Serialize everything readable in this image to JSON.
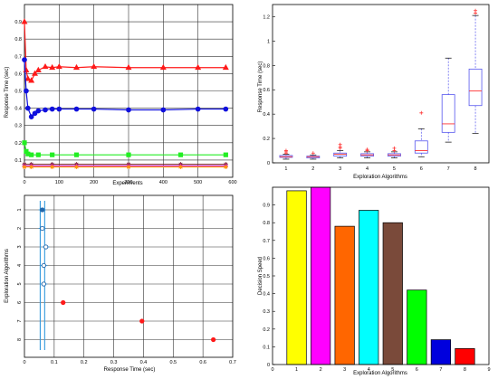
{
  "colors": {
    "red": "#ff1a1a",
    "blue": "#1010dd",
    "green": "#22ee22",
    "maroon": "#7a1a2a",
    "magenta": "#dd22dd",
    "orange": "#ff9900",
    "grid": "#333333",
    "axis": "#000000",
    "box": "#5555ee",
    "median": "#ff3333",
    "ci_line": "#3399dd",
    "ci_point": "#2266aa",
    "bar_fill": [
      "#ffff00",
      "#ff00ff",
      "#ff6600",
      "#00ffff",
      "#7a4a3a",
      "#00ff00",
      "#0000dd",
      "#ff0000"
    ]
  },
  "chart_data": [
    {
      "type": "line",
      "xlabel": "Experiments",
      "ylabel": "Response Time (sec)",
      "xlim": [
        0,
        600
      ],
      "ylim": [
        0,
        1
      ],
      "xticks": [
        0,
        100,
        200,
        300,
        400,
        500,
        600
      ],
      "yticks": [
        0.1,
        0.2,
        0.3,
        0.4,
        0.5,
        0.6,
        0.7,
        0.8,
        0.9
      ],
      "grid": true,
      "series": [
        {
          "color_key": "red",
          "marker": "triangle",
          "x": [
            0,
            5,
            10,
            20,
            30,
            40,
            60,
            80,
            100,
            150,
            200,
            300,
            400,
            500,
            580
          ],
          "y": [
            0.9,
            0.62,
            0.57,
            0.56,
            0.6,
            0.62,
            0.64,
            0.635,
            0.64,
            0.635,
            0.64,
            0.635,
            0.635,
            0.635,
            0.635
          ]
        },
        {
          "color_key": "blue",
          "marker": "circle",
          "x": [
            0,
            5,
            10,
            20,
            30,
            40,
            60,
            80,
            100,
            150,
            200,
            300,
            400,
            500,
            580
          ],
          "y": [
            0.68,
            0.5,
            0.4,
            0.35,
            0.37,
            0.385,
            0.39,
            0.395,
            0.395,
            0.395,
            0.395,
            0.39,
            0.39,
            0.395,
            0.395
          ]
        },
        {
          "color_key": "green",
          "marker": "square",
          "x": [
            0,
            5,
            10,
            20,
            40,
            80,
            150,
            300,
            450,
            580
          ],
          "y": [
            0.2,
            0.15,
            0.135,
            0.13,
            0.13,
            0.13,
            0.13,
            0.13,
            0.13,
            0.13
          ]
        },
        {
          "color_key": "maroon",
          "marker": "star",
          "x": [
            0,
            20,
            80,
            150,
            300,
            450,
            580
          ],
          "y": [
            0.075,
            0.075,
            0.075,
            0.075,
            0.075,
            0.075,
            0.075
          ]
        },
        {
          "color_key": "magenta",
          "marker": "star",
          "x": [
            0,
            20,
            80,
            150,
            300,
            450,
            580
          ],
          "y": [
            0.065,
            0.065,
            0.065,
            0.065,
            0.065,
            0.065,
            0.065
          ]
        },
        {
          "color_key": "orange",
          "marker": "star",
          "x": [
            0,
            20,
            80,
            150,
            300,
            450,
            580
          ],
          "y": [
            0.06,
            0.06,
            0.06,
            0.06,
            0.06,
            0.06,
            0.06
          ]
        }
      ]
    },
    {
      "type": "box",
      "xlabel": "Exploration Algorithms",
      "ylabel": "Response Time (sec)",
      "categories": [
        "1",
        "2",
        "3",
        "4",
        "5",
        "6",
        "7",
        "8"
      ],
      "ylim": [
        0,
        1.3
      ],
      "yticks": [
        0,
        0.2,
        0.4,
        0.6,
        0.8,
        1,
        1.2
      ],
      "boxes": [
        {
          "lw": 0.03,
          "q1": 0.045,
          "med": 0.05,
          "q3": 0.06,
          "uw": 0.07,
          "outliers": [
            0.09,
            0.1,
            0.08
          ]
        },
        {
          "lw": 0.03,
          "q1": 0.04,
          "med": 0.05,
          "q3": 0.055,
          "uw": 0.065,
          "outliers": [
            0.08
          ]
        },
        {
          "lw": 0.04,
          "q1": 0.055,
          "med": 0.07,
          "q3": 0.08,
          "uw": 0.1,
          "outliers": [
            0.12,
            0.13,
            0.15
          ]
        },
        {
          "lw": 0.04,
          "q1": 0.055,
          "med": 0.065,
          "q3": 0.075,
          "uw": 0.09,
          "outliers": [
            0.1,
            0.11
          ]
        },
        {
          "lw": 0.04,
          "q1": 0.055,
          "med": 0.065,
          "q3": 0.075,
          "uw": 0.09,
          "outliers": [
            0.1,
            0.12
          ]
        },
        {
          "lw": 0.05,
          "q1": 0.08,
          "med": 0.1,
          "q3": 0.18,
          "uw": 0.28,
          "outliers": [
            0.41
          ]
        },
        {
          "lw": 0.17,
          "q1": 0.25,
          "med": 0.32,
          "q3": 0.56,
          "uw": 0.86,
          "outliers": []
        },
        {
          "lw": 0.24,
          "q1": 0.47,
          "med": 0.59,
          "q3": 0.77,
          "uw": 1.21,
          "outliers": [
            1.25,
            1.23
          ]
        }
      ]
    },
    {
      "type": "scatter",
      "xlabel": "Response Time (sec)",
      "ylabel": "Exploration Algorithms",
      "categories": [
        "1",
        "2",
        "3",
        "4",
        "5",
        "6",
        "7",
        "8"
      ],
      "xlim": [
        0,
        0.7
      ],
      "xticks": [
        0,
        0.1,
        0.2,
        0.3,
        0.4,
        0.5,
        0.6,
        0.7
      ],
      "vertical_lines": [
        0.053,
        0.068
      ],
      "points": [
        {
          "x": 0.06,
          "y": 1,
          "filled": true
        },
        {
          "x": 0.06,
          "y": 2,
          "filled": false
        },
        {
          "x": 0.072,
          "y": 3,
          "filled": false
        },
        {
          "x": 0.065,
          "y": 4,
          "filled": false
        },
        {
          "x": 0.065,
          "y": 5,
          "filled": false
        },
        {
          "x": 0.13,
          "y": 6,
          "filled": true
        },
        {
          "x": 0.395,
          "y": 7,
          "filled": true
        },
        {
          "x": 0.635,
          "y": 8,
          "filled": true
        }
      ]
    },
    {
      "type": "bar",
      "xlabel": "Exploration Algorithms",
      "ylabel": "Decision Speed",
      "categories": [
        "1",
        "2",
        "3",
        "4",
        "5",
        "6",
        "7",
        "8"
      ],
      "xticks": [
        0,
        1,
        2,
        3,
        4,
        5,
        6,
        7,
        8,
        9
      ],
      "values": [
        0.98,
        1.0,
        0.78,
        0.87,
        0.8,
        0.42,
        0.14,
        0.09
      ],
      "ylim": [
        0,
        1
      ],
      "yticks": [
        0,
        0.1,
        0.2,
        0.3,
        0.4,
        0.5,
        0.6,
        0.7,
        0.8,
        0.9
      ]
    }
  ]
}
